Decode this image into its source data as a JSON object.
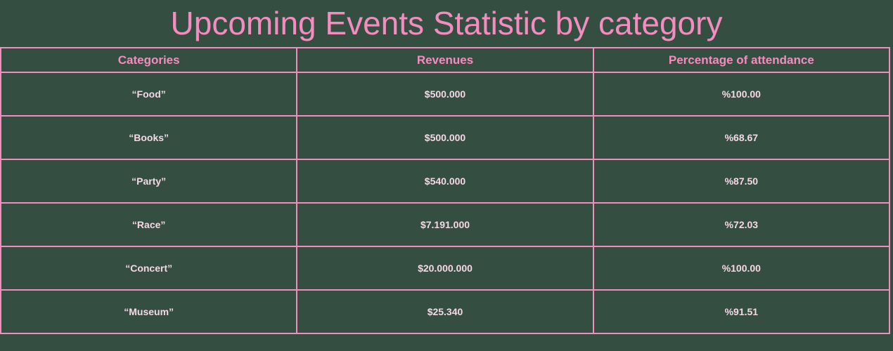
{
  "page": {
    "title": "Upcoming Events Statistic by category"
  },
  "table": {
    "headers": [
      "Categories",
      "Revenues",
      "Percentage of attendance"
    ],
    "rows": [
      {
        "category": "“Food”",
        "revenue": "$500.000",
        "attendance": "%100.00"
      },
      {
        "category": "“Books”",
        "revenue": "$500.000",
        "attendance": "%68.67"
      },
      {
        "category": "“Party”",
        "revenue": "$540.000",
        "attendance": "%87.50"
      },
      {
        "category": "“Race”",
        "revenue": "$7.191.000",
        "attendance": "%72.03"
      },
      {
        "category": "“Concert”",
        "revenue": "$20.000.000",
        "attendance": "%100.00"
      },
      {
        "category": "“Museum”",
        "revenue": "$25.340",
        "attendance": "%91.51"
      }
    ]
  },
  "colors": {
    "background": "#344e41",
    "accent": "#f58cbf",
    "cell_text": "#f3d9e6"
  }
}
